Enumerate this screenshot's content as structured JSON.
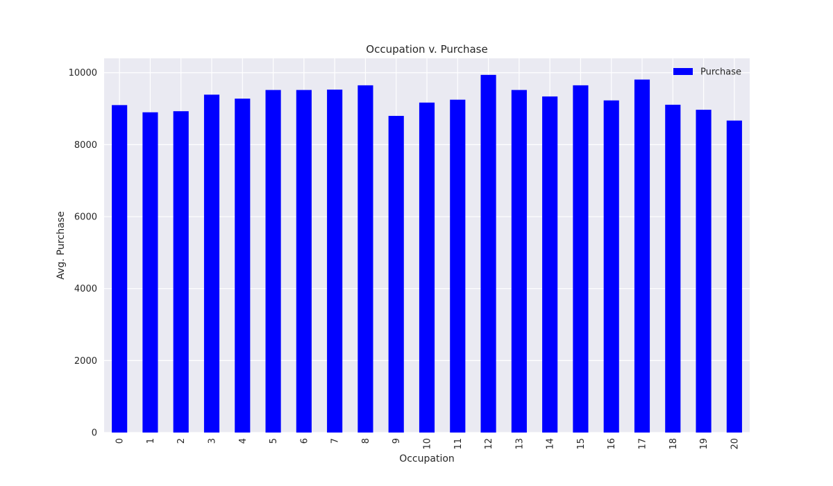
{
  "chart_data": {
    "type": "bar",
    "title": "Occupation v. Purchase",
    "xlabel": "Occupation",
    "ylabel": "Avg. Purchase",
    "categories": [
      "0",
      "1",
      "2",
      "3",
      "4",
      "5",
      "6",
      "7",
      "8",
      "9",
      "10",
      "11",
      "12",
      "13",
      "14",
      "15",
      "16",
      "17",
      "18",
      "19",
      "20"
    ],
    "series": [
      {
        "name": "Purchase",
        "values": [
          9100,
          8900,
          8930,
          9390,
          9280,
          9520,
          9520,
          9530,
          9650,
          8800,
          9170,
          9250,
          9940,
          9520,
          9340,
          9650,
          9230,
          9810,
          9110,
          8970,
          8670
        ]
      }
    ],
    "ylim": [
      0,
      10400
    ],
    "yticks": [
      0,
      2000,
      4000,
      6000,
      8000,
      10000
    ],
    "grid": true,
    "legend_position": "top-right",
    "colors": {
      "bar": "#0000ff",
      "plot_background": "#eaeaf2",
      "grid": "#ffffff",
      "text": "#262626"
    }
  }
}
